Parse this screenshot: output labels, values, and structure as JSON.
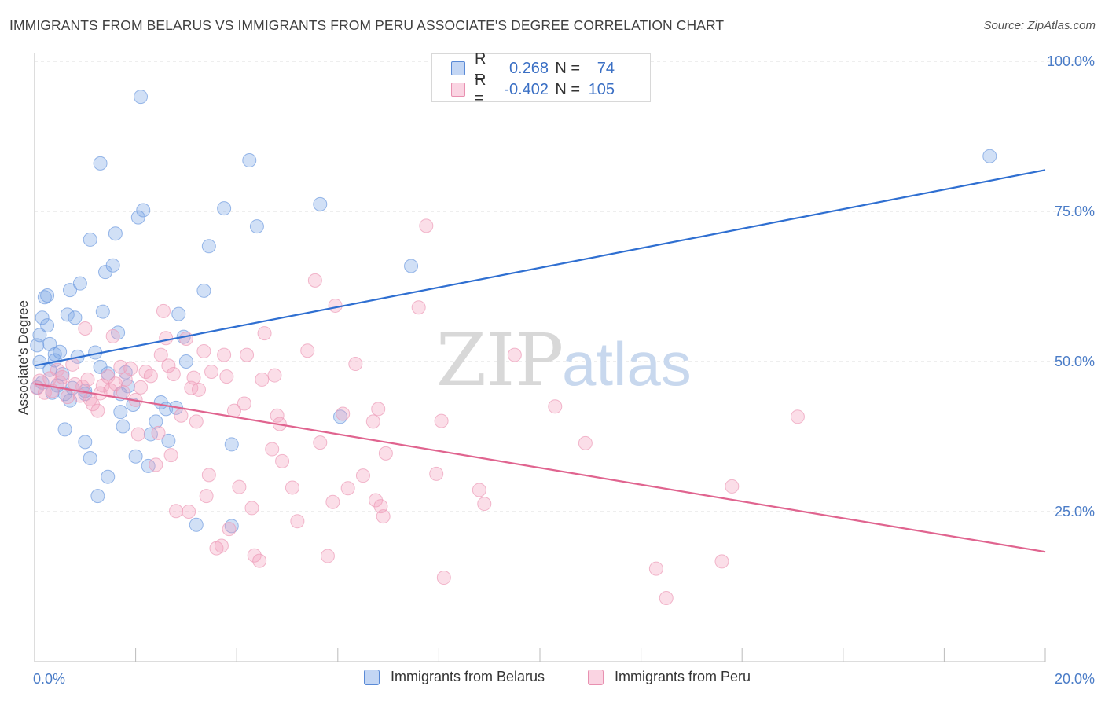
{
  "title": "IMMIGRANTS FROM BELARUS VS IMMIGRANTS FROM PERU ASSOCIATE'S DEGREE CORRELATION CHART",
  "source": "Source: ZipAtlas.com",
  "watermark": {
    "zip": "ZIP",
    "atlas": "atlas"
  },
  "colors": {
    "belarus": "#2f6fd1",
    "belarus_fill": "rgba(122,165,230,0.35)",
    "peru": "#e0648f",
    "peru_fill": "rgba(244,160,190,0.35)",
    "axis_text": "#4a7cc7",
    "grid": "#dddddd"
  },
  "legend": {
    "rows": [
      {
        "r_label": "R =",
        "r_value": "0.268",
        "n_label": "N =",
        "n_value": "74"
      },
      {
        "r_label": "R =",
        "r_value": "-0.402",
        "n_label": "N =",
        "n_value": "105"
      }
    ]
  },
  "chart_data": {
    "type": "scatter",
    "title": "IMMIGRANTS FROM BELARUS VS IMMIGRANTS FROM PERU ASSOCIATE'S DEGREE CORRELATION CHART",
    "xlabel": "",
    "ylabel": "Associate's Degree",
    "xlim": [
      0,
      20
    ],
    "ylim": [
      0,
      100
    ],
    "x_ticks": [
      0,
      20
    ],
    "x_tick_labels": [
      "0.0%",
      "20.0%"
    ],
    "y_ticks": [
      25,
      50,
      75,
      100
    ],
    "y_tick_labels": [
      "25.0%",
      "50.0%",
      "75.0%",
      "100.0%"
    ],
    "grid": true,
    "legend_position": "bottom",
    "series": [
      {
        "name": "Immigrants from Belarus",
        "trend": [
          [
            0,
            49.3
          ],
          [
            20,
            81.9
          ]
        ],
        "points": [
          [
            0.05,
            45.7
          ],
          [
            0.05,
            52.7
          ],
          [
            0.1,
            49.9
          ],
          [
            0.1,
            54.4
          ],
          [
            0.15,
            57.3
          ],
          [
            0.2,
            60.7
          ],
          [
            0.25,
            56.0
          ],
          [
            0.25,
            61.0
          ],
          [
            0.3,
            48.6
          ],
          [
            0.3,
            52.9
          ],
          [
            0.4,
            51.2
          ],
          [
            0.4,
            50.2
          ],
          [
            0.5,
            51.6
          ],
          [
            0.55,
            47.9
          ],
          [
            0.6,
            44.6
          ],
          [
            0.6,
            38.7
          ],
          [
            0.65,
            57.8
          ],
          [
            0.7,
            61.9
          ],
          [
            0.75,
            45.6
          ],
          [
            0.8,
            57.3
          ],
          [
            0.85,
            50.8
          ],
          [
            0.9,
            63.0
          ],
          [
            1.0,
            45.1
          ],
          [
            1.0,
            36.6
          ],
          [
            1.0,
            44.6
          ],
          [
            1.1,
            70.3
          ],
          [
            1.1,
            33.9
          ],
          [
            1.2,
            51.5
          ],
          [
            1.25,
            27.6
          ],
          [
            1.3,
            49.1
          ],
          [
            1.3,
            83.0
          ],
          [
            1.35,
            58.3
          ],
          [
            1.4,
            64.9
          ],
          [
            1.45,
            48.0
          ],
          [
            1.45,
            30.8
          ],
          [
            1.55,
            66.0
          ],
          [
            1.6,
            71.3
          ],
          [
            1.65,
            54.8
          ],
          [
            1.7,
            44.6
          ],
          [
            1.7,
            41.6
          ],
          [
            1.75,
            39.2
          ],
          [
            1.8,
            48.2
          ],
          [
            1.85,
            45.9
          ],
          [
            1.95,
            42.8
          ],
          [
            2.0,
            34.2
          ],
          [
            2.05,
            74.0
          ],
          [
            2.1,
            94.1
          ],
          [
            2.15,
            75.2
          ],
          [
            2.25,
            32.6
          ],
          [
            2.3,
            37.9
          ],
          [
            2.4,
            40.0
          ],
          [
            2.5,
            43.2
          ],
          [
            2.6,
            42.1
          ],
          [
            2.65,
            36.8
          ],
          [
            2.8,
            42.3
          ],
          [
            2.85,
            57.9
          ],
          [
            2.95,
            54.1
          ],
          [
            3.0,
            50.0
          ],
          [
            3.2,
            22.8
          ],
          [
            3.35,
            61.8
          ],
          [
            3.45,
            69.2
          ],
          [
            3.75,
            75.5
          ],
          [
            3.9,
            22.6
          ],
          [
            3.9,
            36.2
          ],
          [
            4.25,
            83.5
          ],
          [
            4.4,
            72.5
          ],
          [
            5.65,
            76.2
          ],
          [
            6.05,
            40.8
          ],
          [
            7.45,
            65.9
          ],
          [
            18.9,
            84.2
          ],
          [
            0.15,
            46.5
          ],
          [
            0.45,
            46.0
          ],
          [
            0.7,
            43.5
          ],
          [
            0.35,
            44.8
          ]
        ]
      },
      {
        "name": "Immigrants from Peru",
        "trend": [
          [
            0,
            46.3
          ],
          [
            20,
            18.3
          ]
        ],
        "points": [
          [
            0.05,
            45.6
          ],
          [
            0.1,
            46.8
          ],
          [
            0.2,
            44.8
          ],
          [
            0.3,
            47.2
          ],
          [
            0.35,
            45.1
          ],
          [
            0.45,
            48.6
          ],
          [
            0.5,
            46.5
          ],
          [
            0.55,
            47.4
          ],
          [
            0.65,
            44.1
          ],
          [
            0.75,
            49.5
          ],
          [
            0.8,
            46.2
          ],
          [
            0.9,
            44.3
          ],
          [
            0.95,
            45.8
          ],
          [
            1.0,
            55.5
          ],
          [
            1.05,
            47.0
          ],
          [
            1.1,
            43.7
          ],
          [
            1.15,
            42.9
          ],
          [
            1.25,
            41.8
          ],
          [
            1.3,
            44.7
          ],
          [
            1.35,
            46.0
          ],
          [
            1.45,
            47.5
          ],
          [
            1.5,
            45.2
          ],
          [
            1.55,
            54.2
          ],
          [
            1.6,
            46.3
          ],
          [
            1.7,
            49.1
          ],
          [
            1.75,
            44.9
          ],
          [
            1.8,
            47.0
          ],
          [
            1.9,
            48.8
          ],
          [
            2.0,
            43.6
          ],
          [
            2.05,
            37.9
          ],
          [
            2.1,
            45.7
          ],
          [
            2.2,
            48.3
          ],
          [
            2.3,
            47.6
          ],
          [
            2.4,
            32.8
          ],
          [
            2.45,
            38.1
          ],
          [
            2.5,
            51.1
          ],
          [
            2.55,
            58.4
          ],
          [
            2.6,
            53.9
          ],
          [
            2.65,
            49.3
          ],
          [
            2.7,
            34.4
          ],
          [
            2.75,
            47.9
          ],
          [
            2.8,
            25.1
          ],
          [
            2.9,
            41.0
          ],
          [
            3.0,
            53.8
          ],
          [
            3.05,
            25.0
          ],
          [
            3.1,
            45.6
          ],
          [
            3.15,
            47.3
          ],
          [
            3.2,
            40.0
          ],
          [
            3.25,
            45.3
          ],
          [
            3.35,
            51.7
          ],
          [
            3.4,
            27.6
          ],
          [
            3.45,
            31.1
          ],
          [
            3.5,
            48.3
          ],
          [
            3.6,
            18.9
          ],
          [
            3.7,
            19.3
          ],
          [
            3.75,
            51.1
          ],
          [
            3.8,
            47.5
          ],
          [
            3.85,
            22.1
          ],
          [
            3.95,
            41.8
          ],
          [
            4.05,
            29.1
          ],
          [
            4.15,
            43.0
          ],
          [
            4.2,
            51.1
          ],
          [
            4.3,
            25.6
          ],
          [
            4.35,
            17.7
          ],
          [
            4.45,
            16.8
          ],
          [
            4.5,
            47.0
          ],
          [
            4.55,
            54.7
          ],
          [
            4.7,
            35.4
          ],
          [
            4.75,
            47.7
          ],
          [
            4.8,
            41.0
          ],
          [
            4.85,
            39.6
          ],
          [
            4.9,
            33.4
          ],
          [
            5.1,
            29.0
          ],
          [
            5.2,
            23.4
          ],
          [
            5.4,
            51.8
          ],
          [
            5.55,
            63.5
          ],
          [
            5.65,
            36.5
          ],
          [
            5.8,
            17.6
          ],
          [
            5.9,
            26.6
          ],
          [
            5.95,
            59.3
          ],
          [
            6.1,
            41.3
          ],
          [
            6.2,
            28.9
          ],
          [
            6.35,
            49.6
          ],
          [
            6.5,
            31.0
          ],
          [
            6.7,
            40.0
          ],
          [
            6.75,
            26.9
          ],
          [
            6.8,
            42.1
          ],
          [
            6.85,
            25.9
          ],
          [
            6.9,
            24.2
          ],
          [
            6.95,
            34.7
          ],
          [
            7.6,
            59.0
          ],
          [
            7.75,
            72.6
          ],
          [
            7.95,
            31.3
          ],
          [
            8.05,
            40.1
          ],
          [
            8.1,
            14.0
          ],
          [
            8.8,
            28.6
          ],
          [
            8.9,
            26.3
          ],
          [
            9.5,
            51.1
          ],
          [
            10.3,
            42.5
          ],
          [
            10.9,
            36.4
          ],
          [
            12.3,
            15.5
          ],
          [
            12.5,
            10.6
          ],
          [
            13.6,
            16.7
          ],
          [
            13.8,
            29.2
          ],
          [
            15.1,
            40.8
          ]
        ]
      }
    ]
  },
  "bottom_legend": {
    "items": [
      {
        "label": "Immigrants from Belarus"
      },
      {
        "label": "Immigrants from Peru"
      }
    ]
  }
}
